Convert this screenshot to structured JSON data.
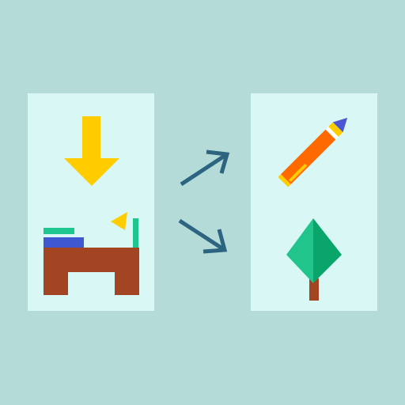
{
  "illustration": {
    "subject": "desk-to-resources-flow-icon",
    "colors": {
      "background": "#b4dbd8",
      "panel": "#d9f8f5",
      "download_arrow": "#ffcc00",
      "desk": "#a34422",
      "book_green": "#1dc68e",
      "book_blue": "#3f58d1",
      "lamp_shade": "#ffcc00",
      "lamp_stand": "#1dc68e",
      "flow_arrows": "#2d6480",
      "pencil_body": "#ff6a00",
      "pencil_stripe": "#ffcc00",
      "pencil_band": "#ffffff",
      "pencil_tip": "#4a56d3",
      "tree_light": "#21c48a",
      "tree_dark": "#0aa56a",
      "tree_trunk": "#a34422"
    }
  }
}
